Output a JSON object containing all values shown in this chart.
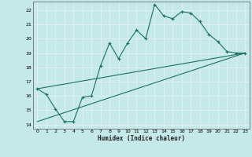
{
  "xlabel": "Humidex (Indice chaleur)",
  "bg_color": "#c5e8e8",
  "line_color": "#1a7060",
  "grid_color": "#e0f0f0",
  "xlim": [
    -0.5,
    23.5
  ],
  "ylim": [
    13.7,
    22.6
  ],
  "yticks": [
    14,
    15,
    16,
    17,
    18,
    19,
    20,
    21,
    22
  ],
  "xticks": [
    0,
    1,
    2,
    3,
    4,
    5,
    6,
    7,
    8,
    9,
    10,
    11,
    12,
    13,
    14,
    15,
    16,
    17,
    18,
    19,
    20,
    21,
    22,
    23
  ],
  "line1_x": [
    0,
    1,
    2,
    3,
    4,
    5,
    6,
    7,
    8,
    9,
    10,
    11,
    12,
    13,
    14,
    15,
    16,
    17,
    18,
    19,
    20,
    21,
    22,
    23
  ],
  "line1_y": [
    16.5,
    16.1,
    15.1,
    14.2,
    14.2,
    15.9,
    16.0,
    18.1,
    19.7,
    18.6,
    19.7,
    20.6,
    20.0,
    22.4,
    21.6,
    21.4,
    21.9,
    21.8,
    21.2,
    20.3,
    19.8,
    19.1,
    19.0,
    19.0
  ],
  "line2_x": [
    0,
    23
  ],
  "line2_y": [
    16.5,
    19.0
  ],
  "line3_x": [
    0,
    23
  ],
  "line3_y": [
    14.2,
    19.0
  ]
}
